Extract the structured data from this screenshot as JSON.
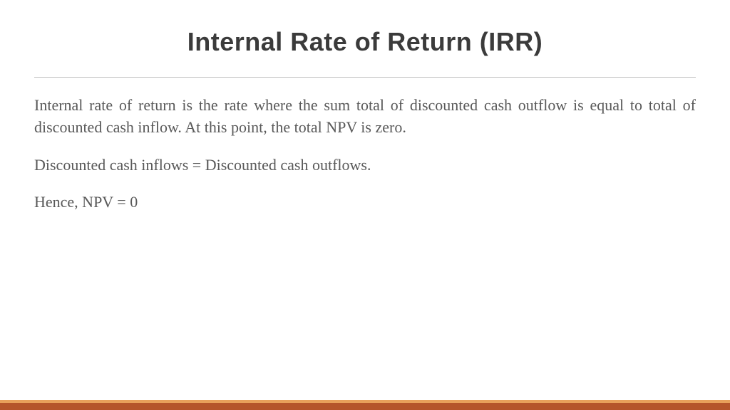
{
  "slide": {
    "title": "Internal Rate of Return (IRR)",
    "title_color": "#3b3b3b",
    "title_fontsize": 36,
    "title_fontweight": "900",
    "title_fontfamily": "Arial, Helvetica, sans-serif",
    "divider_color": "#c0c0c0",
    "body_fontfamily": "Georgia, 'Times New Roman', serif",
    "body_fontsize": 22,
    "body_color": "#595959",
    "paragraphs": [
      "Internal rate of return is the rate where the sum total of discounted cash outflow is equal to total of discounted cash inflow. At this point, the total NPV is zero.",
      "Discounted cash inflows = Discounted cash outflows.",
      "Hence, NPV = 0"
    ],
    "background_color": "#ffffff",
    "footer_top_color": "#e8a05a",
    "footer_bottom_color": "#b5552a"
  }
}
